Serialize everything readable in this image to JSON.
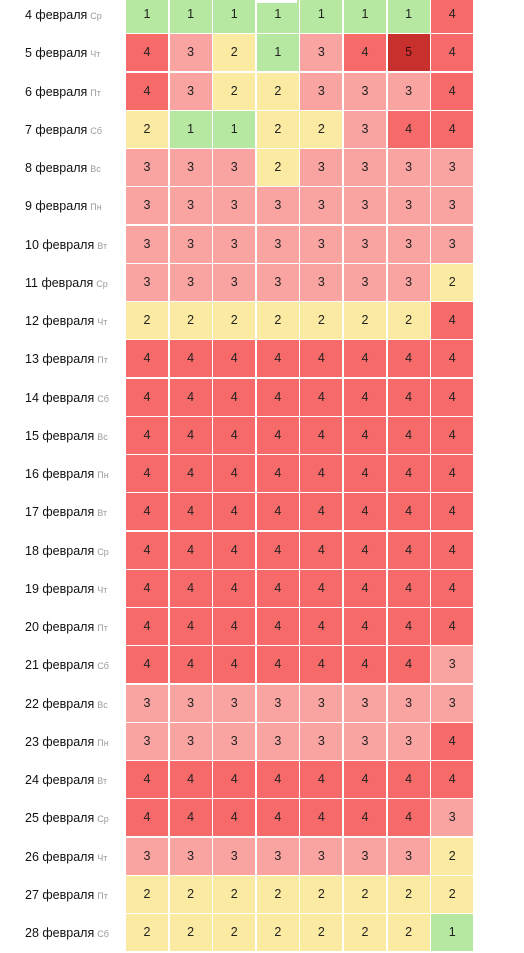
{
  "grid": {
    "rows": [
      {
        "date": "4 февраля",
        "dow": "Ср",
        "values": [
          1,
          1,
          1,
          1,
          1,
          1,
          1,
          4
        ]
      },
      {
        "date": "5 февраля",
        "dow": "Чт",
        "values": [
          4,
          3,
          2,
          1,
          3,
          4,
          5,
          4
        ]
      },
      {
        "date": "6 февраля",
        "dow": "Пт",
        "values": [
          4,
          3,
          2,
          2,
          3,
          3,
          3,
          4
        ]
      },
      {
        "date": "7 февраля",
        "dow": "Сб",
        "values": [
          2,
          1,
          1,
          2,
          2,
          3,
          4,
          4
        ]
      },
      {
        "date": "8 февраля",
        "dow": "Вс",
        "values": [
          3,
          3,
          3,
          2,
          3,
          3,
          3,
          3
        ]
      },
      {
        "date": "9 февраля",
        "dow": "Пн",
        "values": [
          3,
          3,
          3,
          3,
          3,
          3,
          3,
          3
        ]
      },
      {
        "date": "10 февраля",
        "dow": "Вт",
        "values": [
          3,
          3,
          3,
          3,
          3,
          3,
          3,
          3
        ]
      },
      {
        "date": "11 февраля",
        "dow": "Ср",
        "values": [
          3,
          3,
          3,
          3,
          3,
          3,
          3,
          2
        ]
      },
      {
        "date": "12 февраля",
        "dow": "Чт",
        "values": [
          2,
          2,
          2,
          2,
          2,
          2,
          2,
          4
        ]
      },
      {
        "date": "13 февраля",
        "dow": "Пт",
        "values": [
          4,
          4,
          4,
          4,
          4,
          4,
          4,
          4
        ]
      },
      {
        "date": "14 февраля",
        "dow": "Сб",
        "values": [
          4,
          4,
          4,
          4,
          4,
          4,
          4,
          4
        ]
      },
      {
        "date": "15 февраля",
        "dow": "Вс",
        "values": [
          4,
          4,
          4,
          4,
          4,
          4,
          4,
          4
        ]
      },
      {
        "date": "16 февраля",
        "dow": "Пн",
        "values": [
          4,
          4,
          4,
          4,
          4,
          4,
          4,
          4
        ]
      },
      {
        "date": "17 февраля",
        "dow": "Вт",
        "values": [
          4,
          4,
          4,
          4,
          4,
          4,
          4,
          4
        ]
      },
      {
        "date": "18 февраля",
        "dow": "Ср",
        "values": [
          4,
          4,
          4,
          4,
          4,
          4,
          4,
          4
        ]
      },
      {
        "date": "19 февраля",
        "dow": "Чт",
        "values": [
          4,
          4,
          4,
          4,
          4,
          4,
          4,
          4
        ]
      },
      {
        "date": "20 февраля",
        "dow": "Пт",
        "values": [
          4,
          4,
          4,
          4,
          4,
          4,
          4,
          4
        ]
      },
      {
        "date": "21 февраля",
        "dow": "Сб",
        "values": [
          4,
          4,
          4,
          4,
          4,
          4,
          4,
          3
        ]
      },
      {
        "date": "22 февраля",
        "dow": "Вс",
        "values": [
          3,
          3,
          3,
          3,
          3,
          3,
          3,
          3
        ]
      },
      {
        "date": "23 февраля",
        "dow": "Пн",
        "values": [
          3,
          3,
          3,
          3,
          3,
          3,
          3,
          4
        ]
      },
      {
        "date": "24 февраля",
        "dow": "Вт",
        "values": [
          4,
          4,
          4,
          4,
          4,
          4,
          4,
          4
        ]
      },
      {
        "date": "25 февраля",
        "dow": "Ср",
        "values": [
          4,
          4,
          4,
          4,
          4,
          4,
          4,
          3
        ]
      },
      {
        "date": "26 февраля",
        "dow": "Чт",
        "values": [
          3,
          3,
          3,
          3,
          3,
          3,
          3,
          2
        ]
      },
      {
        "date": "27 февраля",
        "dow": "Пт",
        "values": [
          2,
          2,
          2,
          2,
          2,
          2,
          2,
          2
        ]
      },
      {
        "date": "28 февраля",
        "dow": "Сб",
        "values": [
          2,
          2,
          2,
          2,
          2,
          2,
          2,
          1
        ]
      }
    ]
  },
  "level_colors": {
    "1": "#b6e8a1",
    "2": "#fbeaa1",
    "3": "#f9a4a1",
    "4": "#f66a69",
    "5": "#c8302e"
  }
}
